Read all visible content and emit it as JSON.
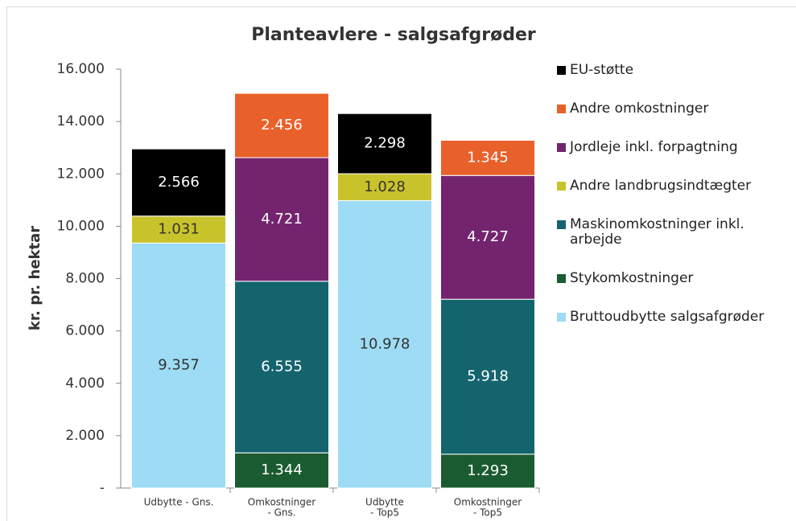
{
  "chart_data": {
    "type": "stacked_bar",
    "title": "Planteavlere - salgsafgrøder",
    "y_label": "kr. pr. hektar",
    "categories": [
      [
        "Udbytte - Gns."
      ],
      [
        "Omkostninger",
        "- Gns."
      ],
      [
        "Udbytte",
        "- Top5"
      ],
      [
        "Omkostninger",
        "- Top5"
      ]
    ],
    "ylim": [
      0,
      16000
    ],
    "yticks": [
      {
        "value": 0,
        "label": "-"
      },
      {
        "value": 2000,
        "label": "2.000"
      },
      {
        "value": 4000,
        "label": "4.000"
      },
      {
        "value": 6000,
        "label": "6.000"
      },
      {
        "value": 8000,
        "label": "8.000"
      },
      {
        "value": 10000,
        "label": "10.000"
      },
      {
        "value": 12000,
        "label": "12.000"
      },
      {
        "value": 14000,
        "label": "14.000"
      },
      {
        "value": 16000,
        "label": "16.000"
      }
    ],
    "series": [
      {
        "name": "Bruttoudbytte salgsafgrøder",
        "color": "#9ddcf4",
        "values": [
          9357,
          null,
          10978,
          null
        ],
        "value_labels": [
          "9.357",
          null,
          "10.978",
          null
        ]
      },
      {
        "name": "Stykomkostninger",
        "color": "#1b5b31",
        "values": [
          null,
          1344,
          null,
          1293
        ],
        "value_labels": [
          null,
          "1.344",
          null,
          "1.293"
        ]
      },
      {
        "name": "Maskinomkostninger inkl. arbejde",
        "color": "#14646e",
        "values": [
          null,
          6555,
          null,
          5918
        ],
        "value_labels": [
          null,
          "6.555",
          null,
          "5.918"
        ]
      },
      {
        "name": "Andre landbrugsindtægter",
        "color": "#c9c32b",
        "values": [
          1031,
          null,
          1028,
          null
        ],
        "value_labels": [
          "1.031",
          null,
          "1.028",
          null
        ]
      },
      {
        "name": "Jordleje inkl. forpagtning",
        "color": "#74246f",
        "values": [
          null,
          4721,
          null,
          4727
        ],
        "value_labels": [
          null,
          "4.721",
          null,
          "4.727"
        ]
      },
      {
        "name": "Andre omkostninger",
        "color": "#e9612a",
        "values": [
          null,
          2456,
          null,
          1345
        ],
        "value_labels": [
          null,
          "2.456",
          null,
          "1.345"
        ]
      },
      {
        "name": "EU-støtte",
        "color": "#000000",
        "values": [
          2566,
          null,
          2298,
          null
        ],
        "value_labels": [
          "2.566",
          null,
          "2.298",
          null
        ]
      }
    ]
  }
}
